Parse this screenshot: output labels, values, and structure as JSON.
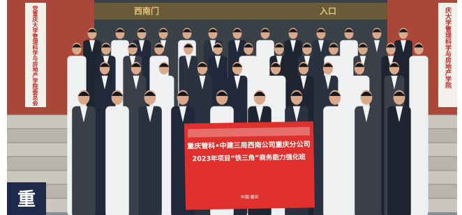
{
  "signs": {
    "left": "党重庆大学管理科学与房地产学院委员会",
    "right": "庆大学管理科学与房地产学院",
    "top_left": "西南门",
    "top_right": "入口"
  },
  "banner": {
    "line1": "重庆管科•中建三局西南公司重庆分公司",
    "line2": "2023年项目“铁三角”商务能力强化班",
    "footer": "中国·重庆"
  },
  "corner_label": "重"
}
